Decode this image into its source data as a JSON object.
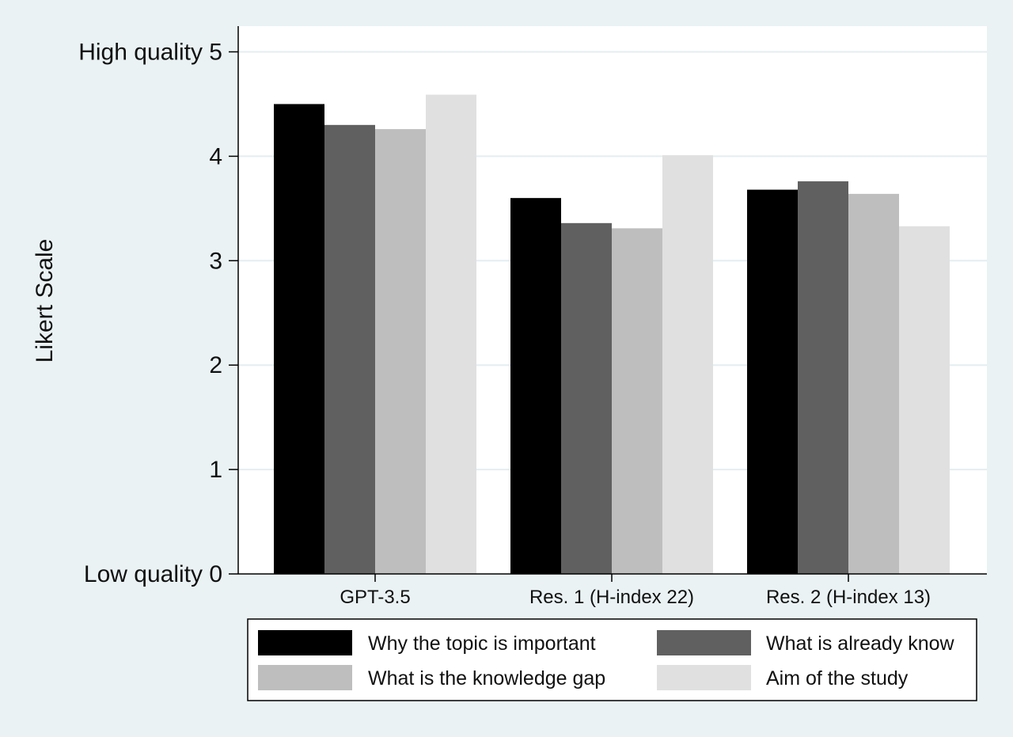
{
  "chart_data": {
    "type": "bar",
    "ylabel": "Likert Scale",
    "xlabel": "",
    "title": "",
    "ylim": [
      0,
      5
    ],
    "yticks": [
      {
        "value": 0,
        "label": "Low quality 0"
      },
      {
        "value": 1,
        "label": "1"
      },
      {
        "value": 2,
        "label": "2"
      },
      {
        "value": 3,
        "label": "3"
      },
      {
        "value": 4,
        "label": "4"
      },
      {
        "value": 5,
        "label": "High quality 5"
      }
    ],
    "categories": [
      "GPT-3.5",
      "Res. 1 (H-index 22)",
      "Res. 2 (H-index 13)"
    ],
    "series": [
      {
        "name": "Why the topic is important",
        "color": "#000000",
        "values": [
          4.5,
          3.6,
          3.68
        ]
      },
      {
        "name": "What is already know",
        "color": "#606060",
        "values": [
          4.3,
          3.36,
          3.76
        ]
      },
      {
        "name": "What is the knowledge gap",
        "color": "#bebebe",
        "values": [
          4.26,
          3.31,
          3.64
        ]
      },
      {
        "name": "Aim of the study",
        "color": "#e0e0e0",
        "values": [
          4.59,
          4.01,
          3.33
        ]
      }
    ],
    "grid": true,
    "legend_position": "bottom"
  },
  "colors": {
    "background": "#eaf2f3",
    "plot_background": "#ffffff",
    "gridline": "#e4eef0"
  }
}
